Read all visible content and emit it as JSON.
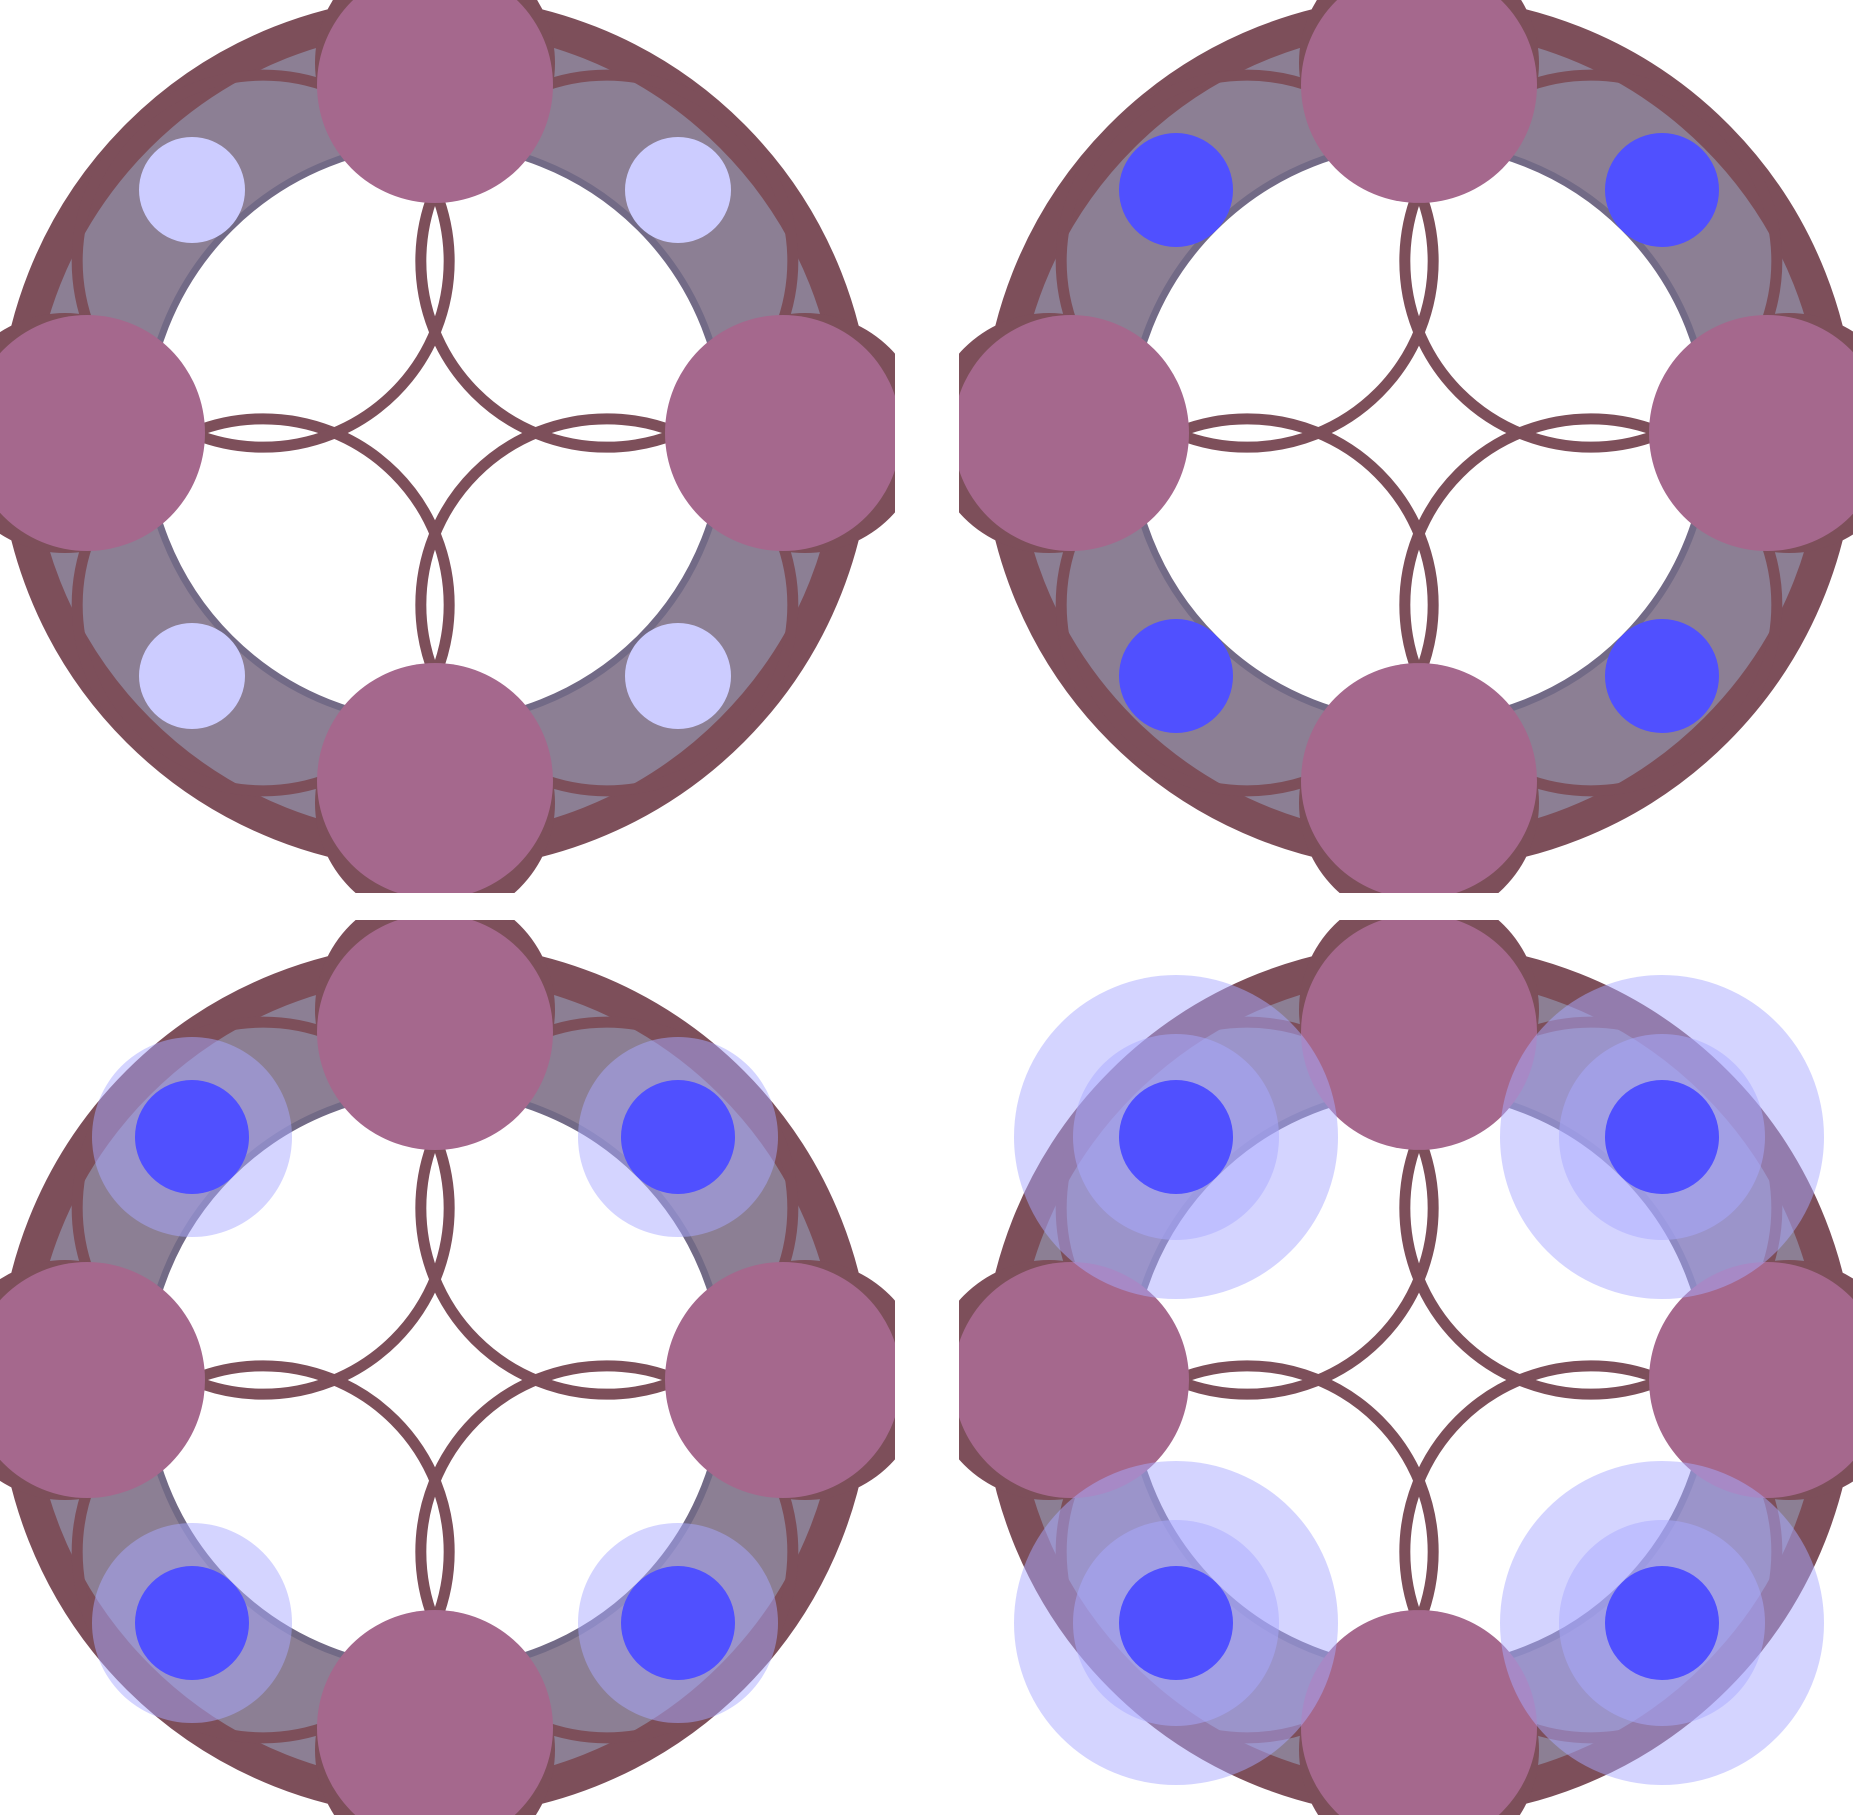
{
  "colors": {
    "background": "#ffffff",
    "outer_ring_stroke": "#7d4f5a",
    "ring_fill": "#8c7f94",
    "inner_track": "#726a86",
    "lobe_shadow": "#7d4f5a",
    "lobe_fill": "#a5688d",
    "arc_stroke": "#7d4f5a",
    "dot_pale": "#ccccff",
    "dot_vivid": "#5050ff",
    "halo": "#aaaaff"
  },
  "panels": [
    {
      "dot_style": "pale",
      "halo_levels": 0
    },
    {
      "dot_style": "vivid",
      "halo_levels": 0
    },
    {
      "dot_style": "vivid",
      "halo_levels": 1
    },
    {
      "dot_style": "vivid",
      "halo_levels": 2
    }
  ]
}
